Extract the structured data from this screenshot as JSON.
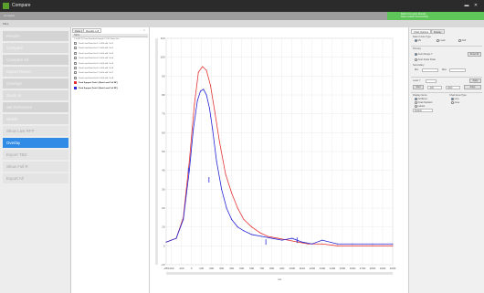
{
  "window": {
    "title": "Compare",
    "minimize": "▬",
    "close": "✕"
  },
  "statusbar": {
    "left": "Compare",
    "panel_line1": "Batch Compare Results",
    "panel_line2": "Data Loaded Successfully"
  },
  "toolbar": {
    "label": "Files"
  },
  "sidebar": {
    "items": [
      {
        "label": "Results"
      },
      {
        "label": "Compare"
      },
      {
        "label": "Compare All"
      },
      {
        "label": "Export Report"
      },
      {
        "label": "Overlays"
      },
      {
        "label": "Zoom In"
      },
      {
        "label": "Set Reference"
      },
      {
        "label": "Delete"
      },
      {
        "label": "Show Last RFP"
      },
      {
        "label": "Overlay"
      },
      {
        "label": "Export TBD"
      },
      {
        "label": "Show Full R"
      },
      {
        "label": "Export All"
      }
    ]
  },
  "filelist": {
    "tabs": [
      "Data 1",
      "Results 1-8"
    ],
    "close": "×",
    "header": "Name",
    "subheader": "1.4 (RP 1) Data Standard Sample 3 CSC Base Ver...",
    "rows": [
      {
        "label": "Peak Load Data Set 1: 0.000 mN. Val 1",
        "swatch": "",
        "checked": false
      },
      {
        "label": "Peak Load Data Set 2: 0.000 mN. Val 2",
        "swatch": "",
        "checked": false
      },
      {
        "label": "Peak Load Data Set 3: 0.000 mN. Val 3",
        "swatch": "",
        "checked": false
      },
      {
        "label": "Peak Load Data Set 4: 0.000 mN. Val 4",
        "swatch": "",
        "checked": false
      },
      {
        "label": "Peak Load Data Set 5: 0.000 mN. Val 5",
        "swatch": "",
        "checked": false
      },
      {
        "label": "Peak Load Data Set 6: 0.000 mN. Val 6",
        "swatch": "",
        "checked": false
      },
      {
        "label": "Peak Load Data Set 7: 0.000 mN. Val 7",
        "swatch": "",
        "checked": false
      },
      {
        "label": "Peak Load Data Set 8: 0.000 mN. Val 8",
        "swatch": "",
        "checked": false
      },
      {
        "label": "Peak Support Peak 1 (Dark Load Cell RF)",
        "swatch": "#e03030",
        "checked": true
      },
      {
        "label": "Peak Support Peak 2 (Dark Load Cell RF)",
        "swatch": "#2a2ad0",
        "checked": true
      }
    ]
  },
  "chart_data": {
    "type": "line",
    "title": "",
    "xlabel": "ms",
    "ylabel": "",
    "xlim": [
      -250,
      2000
    ],
    "ylim": [
      -10,
      110
    ],
    "x_ticks": [
      "-250",
      "-200",
      "-100",
      "0",
      "100",
      "200",
      "300",
      "400",
      "500",
      "600",
      "700",
      "800",
      "900",
      "1000",
      "1100",
      "1200",
      "1300",
      "1400",
      "1500",
      "1600",
      "1700",
      "1800",
      "1900",
      "2000"
    ],
    "y_ticks": [
      "110",
      "100",
      "90",
      "80",
      "70",
      "60",
      "50",
      "40",
      "30",
      "20",
      "10",
      "0",
      "-10"
    ],
    "grid": true,
    "series": [
      {
        "color": "#e53535",
        "x": [
          -250,
          -150,
          -80,
          -20,
          30,
          70,
          110,
          150,
          190,
          230,
          280,
          340,
          400,
          460,
          520,
          600,
          680,
          760,
          860,
          960,
          1060,
          1160,
          1300,
          1450,
          1600,
          1800,
          2000
        ],
        "y": [
          2,
          4,
          15,
          45,
          75,
          92,
          95,
          93,
          85,
          72,
          55,
          38,
          28,
          20,
          14,
          10,
          7,
          5,
          4,
          3,
          2,
          1,
          1,
          0,
          0,
          0,
          0
        ]
      },
      {
        "color": "#2424d4",
        "x": [
          -250,
          -150,
          -80,
          -20,
          20,
          60,
          90,
          120,
          150,
          180,
          210,
          250,
          300,
          350,
          400,
          460,
          520,
          600,
          700,
          800,
          900,
          1000,
          1100,
          1200,
          1300,
          1450,
          1600,
          1800,
          2000
        ],
        "y": [
          2,
          4,
          14,
          40,
          62,
          77,
          82,
          83,
          80,
          73,
          62,
          45,
          30,
          20,
          14,
          10,
          8,
          6,
          5,
          4,
          3,
          4,
          2,
          1,
          3,
          1,
          1,
          1,
          1
        ]
      }
    ]
  },
  "props": {
    "tabs": [
      "Chart Options",
      "Display"
    ],
    "x_axis_type": "Data X Axis Type",
    "x_radio": [
      "Ms",
      "Load",
      "Defl"
    ],
    "primary": "Primary",
    "peak_label": "Auto Range Y",
    "reset_btn": "Reset All",
    "auto_scale_label": "Auto Scale Peak",
    "secondary": "Secondary",
    "min_label": "Min",
    "max_label": "Max",
    "level_label": "Level Y",
    "apply_btn": "Apply",
    "start_btn": "Start",
    "range1": "-100",
    "range2": "2000",
    "display_label": "Display Items",
    "chart_area_label": "Chart Area Type",
    "display_items": [
      "Gridlines",
      "Peak Markers",
      "Labels"
    ],
    "chart_types": [
      "Line",
      "Area"
    ],
    "select_label": "Default"
  },
  "colors": {
    "accent": "#2f8be6",
    "status_ok": "#5fc65a",
    "titlebar": "#2b2b2b"
  }
}
